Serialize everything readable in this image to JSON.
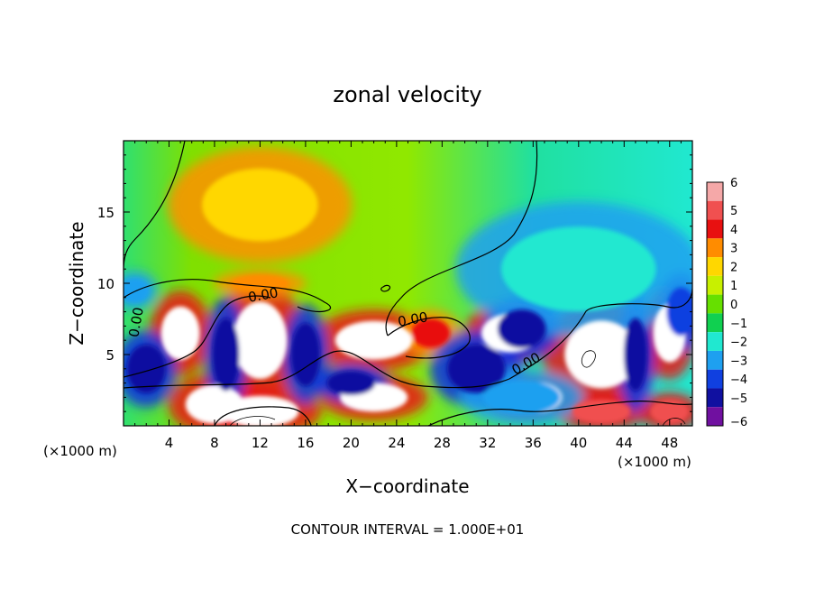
{
  "chart_data": {
    "type": "heatmap",
    "title": "zonal velocity",
    "xlabel": "X−coordinate",
    "ylabel": "Z−coordinate",
    "x_unit_left": "(×1000 m)",
    "x_unit_right": "(×1000 m)",
    "footer": "CONTOUR INTERVAL = 1.000E+01",
    "xlim": [
      0,
      50
    ],
    "ylim": [
      0,
      20
    ],
    "x_ticks": [
      4,
      8,
      12,
      16,
      20,
      24,
      28,
      32,
      36,
      40,
      44,
      48
    ],
    "x_tick_labels": [
      "4",
      "8",
      "12",
      "16",
      "20",
      "24",
      "28",
      "32",
      "36",
      "40",
      "44",
      "48"
    ],
    "y_ticks": [
      5,
      10,
      15
    ],
    "y_tick_labels": [
      "5",
      "10",
      "15"
    ],
    "colorbar": {
      "levels": [
        6,
        5,
        4,
        3,
        2,
        1,
        0,
        -1,
        -2,
        -3,
        -4,
        -5,
        -6
      ],
      "labels": [
        "6",
        "5",
        "4",
        "3",
        "2",
        "1",
        "0",
        "−1",
        "−2",
        "−3",
        "−4",
        "−5",
        "−6"
      ],
      "colors": [
        "#f5a8a8",
        "#f05050",
        "#e81010",
        "#ff8c00",
        "#ffd700",
        "#c8f000",
        "#66e000",
        "#10d050",
        "#20e8d0",
        "#1ea0f0",
        "#1040e0",
        "#1010a0",
        "#7010a0"
      ]
    },
    "contour_labels": [
      "0.00",
      "0.00",
      "0.00",
      "0.00"
    ],
    "features": [
      {
        "x": 5,
        "z": 6.5,
        "value": 7,
        "rx": 2.0,
        "rz": 2.2
      },
      {
        "x": 12,
        "z": 6.0,
        "value": 8,
        "rx": 2.8,
        "rz": 3.2
      },
      {
        "x": 22,
        "z": 6.0,
        "value": 6,
        "rx": 4.0,
        "rz": 1.6
      },
      {
        "x": 27,
        "z": 6.5,
        "value": 4,
        "rx": 2.0,
        "rz": 1.2
      },
      {
        "x": 42,
        "z": 5.0,
        "value": 7,
        "rx": 3.8,
        "rz": 2.8
      },
      {
        "x": 48,
        "z": 6.5,
        "value": 7,
        "rx": 1.7,
        "rz": 2.4
      },
      {
        "x": 8,
        "z": 1.5,
        "value": 7,
        "rx": 3.0,
        "rz": 1.6
      },
      {
        "x": 12,
        "z": 1.0,
        "value": 6,
        "rx": 4.0,
        "rz": 1.3
      },
      {
        "x": 22,
        "z": 2.0,
        "value": 6,
        "rx": 3.5,
        "rz": 1.2
      },
      {
        "x": 36,
        "z": 2.0,
        "value": 6,
        "rx": 3.0,
        "rz": 1.3
      },
      {
        "x": 42,
        "z": 1.0,
        "value": 5,
        "rx": 3.0,
        "rz": 1.0
      },
      {
        "x": 48,
        "z": 1.0,
        "value": 5,
        "rx": 2.0,
        "rz": 1.0
      },
      {
        "x": 34,
        "z": 6.5,
        "value": 7,
        "rx": 3.0,
        "rz": 1.6
      },
      {
        "x": 12,
        "z": 10.0,
        "value": 3,
        "rx": 3.0,
        "rz": 0.7
      },
      {
        "x": 12,
        "z": 15.5,
        "value": 2,
        "rx": 6.0,
        "rz": 3.0
      },
      {
        "x": 2,
        "z": 4.0,
        "value": -5,
        "rx": 2.0,
        "rz": 2.0
      },
      {
        "x": 9,
        "z": 5.0,
        "value": -5,
        "rx": 1.4,
        "rz": 3.0
      },
      {
        "x": 16,
        "z": 5.0,
        "value": -5,
        "rx": 1.5,
        "rz": 2.6
      },
      {
        "x": 20,
        "z": 3.0,
        "value": -5,
        "rx": 2.5,
        "rz": 1.0
      },
      {
        "x": 31,
        "z": 4.0,
        "value": -5,
        "rx": 3.0,
        "rz": 2.0
      },
      {
        "x": 35,
        "z": 6.8,
        "value": -5,
        "rx": 2.5,
        "rz": 1.6
      },
      {
        "x": 45,
        "z": 5.0,
        "value": -5,
        "rx": 1.2,
        "rz": 3.0
      },
      {
        "x": 49,
        "z": 8.0,
        "value": -4,
        "rx": 1.5,
        "rz": 2.0
      },
      {
        "x": 40,
        "z": 11.0,
        "value": -2,
        "rx": 8.0,
        "rz": 3.5
      },
      {
        "x": 35,
        "z": 2.0,
        "value": -3,
        "rx": 4.0,
        "rz": 1.4
      },
      {
        "x": 1,
        "z": 9.5,
        "value": -3,
        "rx": 1.5,
        "rz": 1.0
      }
    ]
  }
}
